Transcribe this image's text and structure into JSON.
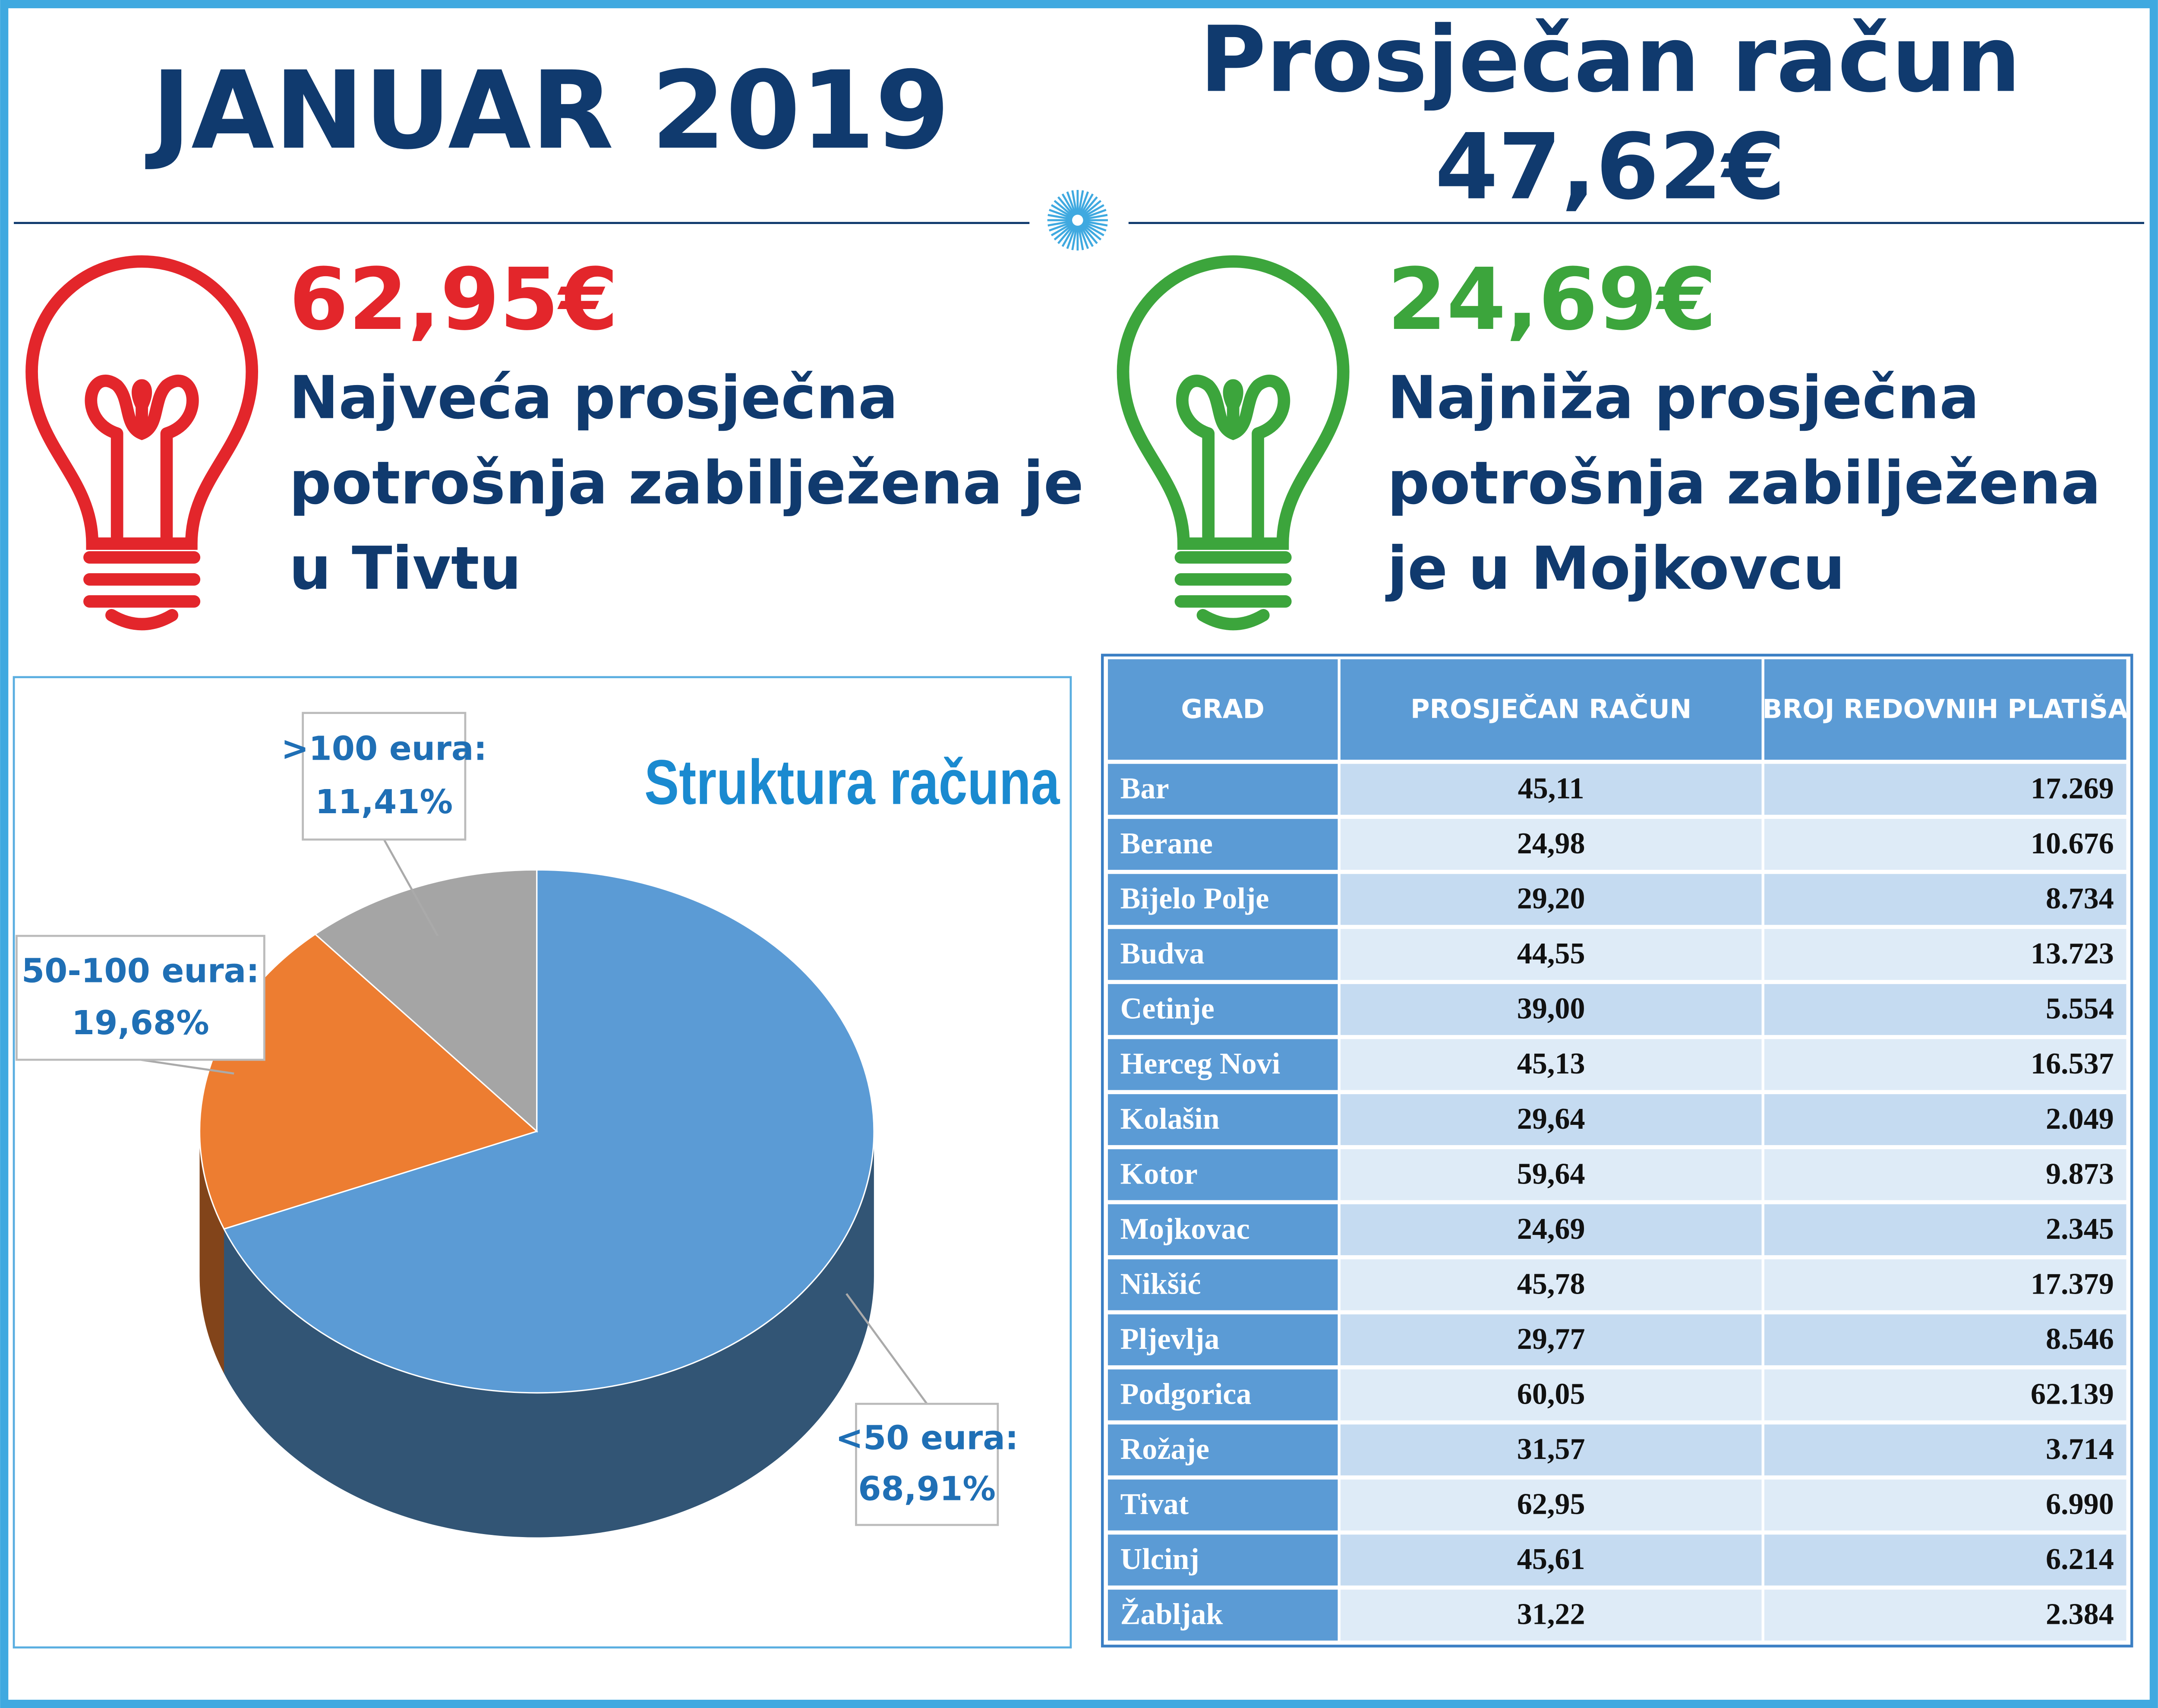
{
  "header": {
    "title": "JANUAR 2019",
    "average_label": "Prosječan račun",
    "average_value": "47,62€"
  },
  "highlights": [
    {
      "amount": "62,95€",
      "lines": [
        "Najveća prosječna",
        "potrošnja zabilježena je",
        "u Tivtu"
      ],
      "color": "#e3262b"
    },
    {
      "amount": "24,69€",
      "lines": [
        "Najniža prosječna",
        "potrošnja zabilježena",
        "je u Mojkovcu"
      ],
      "color": "#3ca53c"
    }
  ],
  "chart_data": {
    "type": "pie",
    "title": "Struktura računa",
    "categories": [
      "<50 eura:",
      "50-100 eura:",
      ">100 eura:"
    ],
    "values": [
      68.91,
      19.68,
      11.41
    ],
    "value_labels": [
      "68,91%",
      "19,68%",
      "11,41%"
    ],
    "colors": [
      "#5b9bd5",
      "#ed7d31",
      "#a5a5a5"
    ]
  },
  "table": {
    "headers": [
      "GRAD",
      "PROSJEČAN RAČUN",
      "BROJ REDOVNIH PLATIŠA"
    ],
    "rows": [
      [
        "Bar",
        "45,11",
        "17.269"
      ],
      [
        "Berane",
        "24,98",
        "10.676"
      ],
      [
        "Bijelo Polje",
        "29,20",
        "8.734"
      ],
      [
        "Budva",
        "44,55",
        "13.723"
      ],
      [
        "Cetinje",
        "39,00",
        "5.554"
      ],
      [
        "Herceg Novi",
        "45,13",
        "16.537"
      ],
      [
        "Kolašin",
        "29,64",
        "2.049"
      ],
      [
        "Kotor",
        "59,64",
        "9.873"
      ],
      [
        "Mojkovac",
        "24,69",
        "2.345"
      ],
      [
        "Nikšić",
        "45,78",
        "17.379"
      ],
      [
        "Pljevlja",
        "29,77",
        "8.546"
      ],
      [
        "Podgorica",
        "60,05",
        "62.139"
      ],
      [
        "Rožaje",
        "31,57",
        "3.714"
      ],
      [
        "Tivat",
        "62,95",
        "6.990"
      ],
      [
        "Ulcinj",
        "45,61",
        "6.214"
      ],
      [
        "Žabljak",
        "31,22",
        "2.384"
      ]
    ]
  }
}
